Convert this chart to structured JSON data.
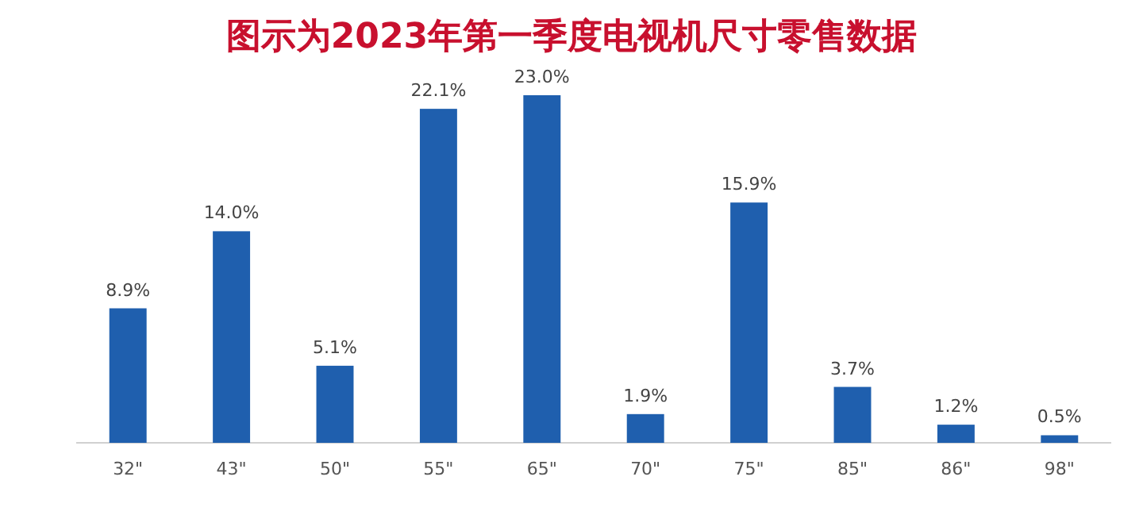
{
  "chart_data": {
    "type": "bar",
    "title": "图示为2023年第一季度电视机尺寸零售数据",
    "categories": [
      "32\"",
      "43\"",
      "50\"",
      "55\"",
      "65\"",
      "70\"",
      "75\"",
      "85\"",
      "86\"",
      "98\""
    ],
    "values": [
      8.9,
      14.0,
      5.1,
      22.1,
      23.0,
      1.9,
      15.9,
      3.7,
      1.2,
      0.5
    ],
    "value_labels": [
      "8.9%",
      "14.0%",
      "5.1%",
      "22.1%",
      "23.0%",
      "1.9%",
      "15.9%",
      "3.7%",
      "1.2%",
      "0.5%"
    ],
    "color": "#1f5fae"
  }
}
